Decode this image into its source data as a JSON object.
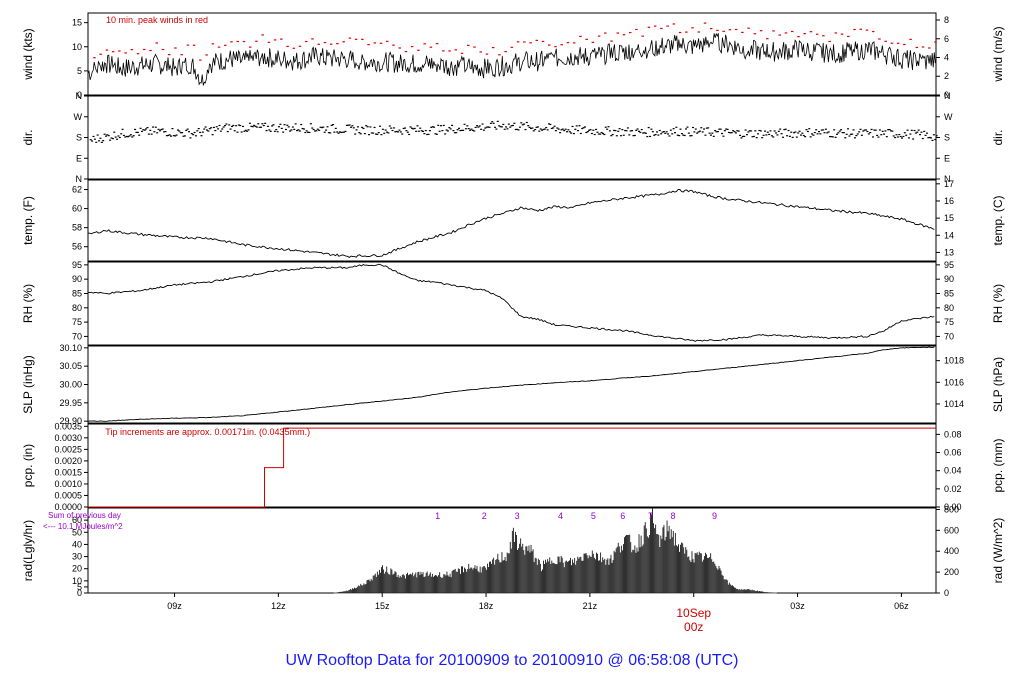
{
  "title": "UW Rooftop Data for 20100909  to  20100910 @ 06:58:08  (UTC)",
  "colors": {
    "axis": "#000000",
    "trace": "#000000",
    "peak": "#e00000",
    "annotation_red": "#d00000",
    "annotation_purple": "#9900cc",
    "title": "#1a1aff"
  },
  "x_axis": {
    "range_hours": [
      6.5,
      31.0
    ],
    "ticks": [
      {
        "hour": 9,
        "label": "09z"
      },
      {
        "hour": 12,
        "label": "12z"
      },
      {
        "hour": 15,
        "label": "15z"
      },
      {
        "hour": 18,
        "label": "18z"
      },
      {
        "hour": 21,
        "label": "21z"
      },
      {
        "hour": 27,
        "label": "03z"
      },
      {
        "hour": 30,
        "label": "06z"
      }
    ],
    "date_marker": {
      "hour": 24,
      "label_top": "10Sep",
      "label_bottom": "00z"
    }
  },
  "chart_data": [
    {
      "id": "wind",
      "type": "line",
      "ylabel_left": "wind (kts)",
      "ylabel_right": "wind (m/s)",
      "ylim": [
        0,
        17
      ],
      "ticks_left": [
        0,
        5,
        10,
        15
      ],
      "ticks_right": [
        {
          "v": 0,
          "label": "0"
        },
        {
          "v": 3.89,
          "label": "2"
        },
        {
          "v": 7.78,
          "label": "4"
        },
        {
          "v": 11.66,
          "label": "6"
        },
        {
          "v": 15.55,
          "label": "8"
        }
      ],
      "annotation": "10 min. peak winds in red",
      "series": [
        {
          "x": [
            6.5,
            7.0,
            7.5,
            8.0,
            8.5,
            9.0,
            9.5,
            9.8,
            10.0,
            10.3,
            10.6,
            11.0,
            11.5,
            12.0,
            12.5,
            13.0,
            13.5,
            14.0,
            14.5,
            15.0,
            15.5,
            16.0,
            16.5,
            17.0,
            17.5,
            18.0,
            18.5,
            19.0,
            19.5,
            20.0,
            20.5,
            21.0,
            21.5,
            22.0,
            22.5,
            23.0,
            23.5,
            24.0,
            24.5,
            25.0,
            25.5,
            26.0,
            26.5,
            27.0,
            27.5,
            28.0,
            28.5,
            29.0,
            29.5,
            30.0,
            30.5,
            31.0
          ],
          "y": [
            4.5,
            6.5,
            5.5,
            6,
            6.5,
            5.5,
            6.5,
            3,
            6.5,
            7,
            7.5,
            7,
            8,
            7.5,
            7,
            8,
            7.5,
            7.5,
            7,
            7,
            6.5,
            6.5,
            6.5,
            6,
            6,
            5.5,
            6,
            7,
            7,
            7.5,
            8,
            8,
            8.5,
            9,
            9.5,
            10,
            10.5,
            10,
            11,
            10.5,
            9.5,
            9,
            9,
            9.5,
            9,
            8.5,
            9,
            9.5,
            8.5,
            7.5,
            7,
            7
          ]
        }
      ]
    },
    {
      "id": "dir",
      "type": "scatter",
      "ylabel_left": "dir.",
      "ylabel_right": "dir.",
      "ylim": [
        0,
        360
      ],
      "ticks_left": [
        {
          "v": 360,
          "label": "N"
        },
        {
          "v": 270,
          "label": "W"
        },
        {
          "v": 180,
          "label": "S"
        },
        {
          "v": 90,
          "label": "E"
        },
        {
          "v": 0,
          "label": "N"
        }
      ],
      "ticks_right": [
        {
          "v": 360,
          "label": "N"
        },
        {
          "v": 270,
          "label": "W"
        },
        {
          "v": 180,
          "label": "S"
        },
        {
          "v": 90,
          "label": "E"
        },
        {
          "v": 0,
          "label": "N"
        }
      ],
      "series": [
        {
          "x": [
            6.5,
            7.5,
            8.5,
            9.5,
            10.5,
            11.5,
            12.5,
            13.5,
            14.5,
            15.5,
            16.5,
            17.5,
            18.5,
            19.5,
            20.5,
            21.5,
            22.5,
            23.5,
            24.5,
            25.5,
            26.5,
            27.5,
            28.5,
            29.5,
            30.5,
            31.0
          ],
          "y": [
            170,
            200,
            210,
            200,
            225,
            225,
            225,
            220,
            215,
            215,
            215,
            225,
            235,
            225,
            215,
            210,
            205,
            210,
            205,
            200,
            200,
            205,
            200,
            200,
            195,
            185
          ],
          "spread": 20
        }
      ]
    },
    {
      "id": "temp",
      "type": "line",
      "ylabel_left": "temp. (F)",
      "ylabel_right": "temp. (C)",
      "ylim": [
        54.5,
        63
      ],
      "ticks_left": [
        56,
        58,
        60,
        62
      ],
      "ticks_right": [
        {
          "v": 55.4,
          "label": "13"
        },
        {
          "v": 57.2,
          "label": "14"
        },
        {
          "v": 59.0,
          "label": "15"
        },
        {
          "v": 60.8,
          "label": "16"
        },
        {
          "v": 62.6,
          "label": "17"
        }
      ],
      "series": [
        {
          "x": [
            6.5,
            7.0,
            8.0,
            9.0,
            10.0,
            11.0,
            12.0,
            13.0,
            14.0,
            15.0,
            15.5,
            16.0,
            16.5,
            17.0,
            17.5,
            18.0,
            18.5,
            19.0,
            19.5,
            20.0,
            20.5,
            21.0,
            22.0,
            23.0,
            23.5,
            24.0,
            24.5,
            25.0,
            26.0,
            27.0,
            28.0,
            29.0,
            30.0,
            31.0
          ],
          "y": [
            57.3,
            57.7,
            57.3,
            57,
            56.9,
            56.2,
            55.8,
            55.4,
            55,
            55.1,
            55.8,
            56.5,
            57,
            57.5,
            58.3,
            59,
            59.5,
            60.1,
            59.8,
            60.2,
            60.1,
            60.6,
            61.1,
            61.5,
            61.9,
            61.8,
            61.3,
            61,
            60.6,
            60.2,
            59.8,
            59.5,
            58.9,
            57.8
          ]
        }
      ]
    },
    {
      "id": "rh",
      "type": "line",
      "ylabel_left": "RH (%)",
      "ylabel_right": "RH (%)",
      "ylim": [
        67,
        96
      ],
      "ticks_left": [
        70,
        75,
        80,
        85,
        90,
        95
      ],
      "ticks_right": [
        {
          "v": 70,
          "label": "70"
        },
        {
          "v": 75,
          "label": "75"
        },
        {
          "v": 80,
          "label": "80"
        },
        {
          "v": 85,
          "label": "85"
        },
        {
          "v": 90,
          "label": "90"
        },
        {
          "v": 95,
          "label": "95"
        }
      ],
      "series": [
        {
          "x": [
            6.5,
            7.0,
            8.0,
            9.0,
            10.0,
            11.0,
            12.0,
            13.0,
            14.0,
            14.5,
            15.0,
            15.5,
            16.0,
            16.5,
            17.0,
            17.5,
            18.0,
            18.5,
            19.0,
            19.5,
            20.0,
            20.5,
            21.0,
            22.0,
            23.0,
            24.0,
            25.0,
            26.0,
            27.0,
            28.0,
            29.0,
            29.5,
            30.0,
            31.0
          ],
          "y": [
            85.5,
            85,
            86,
            88,
            89,
            91,
            93,
            94,
            94,
            95,
            95,
            92,
            89.5,
            89,
            88,
            87,
            86,
            83,
            77,
            76,
            74,
            73.5,
            73,
            72,
            70,
            68.5,
            69,
            70.5,
            70,
            69.5,
            70,
            72,
            75.5,
            77
          ]
        }
      ]
    },
    {
      "id": "slp",
      "type": "line",
      "ylabel_left": "SLP (inHg)",
      "ylabel_right": "SLP (hPa)",
      "ylim": [
        29.895,
        30.105
      ],
      "ticks_left": [
        {
          "v": 29.9,
          "label": "29.90"
        },
        {
          "v": 29.95,
          "label": "29.95"
        },
        {
          "v": 30.0,
          "label": "30.00"
        },
        {
          "v": 30.05,
          "label": "30.05"
        },
        {
          "v": 30.1,
          "label": "30.10"
        }
      ],
      "ticks_right": [
        {
          "v": 29.947,
          "label": "1014"
        },
        {
          "v": 30.006,
          "label": "1016"
        },
        {
          "v": 30.065,
          "label": "1018"
        }
      ],
      "series": [
        {
          "x": [
            6.5,
            7.0,
            8.0,
            9.0,
            10.0,
            11.0,
            12.0,
            13.0,
            14.0,
            15.0,
            16.0,
            17.0,
            18.0,
            19.0,
            20.0,
            21.0,
            22.0,
            23.0,
            24.0,
            25.0,
            26.0,
            27.0,
            28.0,
            29.0,
            29.5,
            30.0,
            31.0
          ],
          "y": [
            29.9,
            29.9,
            29.905,
            29.908,
            29.91,
            29.915,
            29.925,
            29.935,
            29.945,
            29.955,
            29.965,
            29.98,
            29.99,
            29.998,
            30.005,
            30.01,
            30.018,
            30.025,
            30.035,
            30.045,
            30.055,
            30.065,
            30.075,
            30.085,
            30.095,
            30.1,
            30.102
          ]
        }
      ]
    },
    {
      "id": "pcp",
      "type": "line",
      "ylabel_left": "pcp. (in)",
      "ylabel_right": "pcp. (mm)",
      "ylim": [
        0,
        0.0036
      ],
      "ticks_left": [
        {
          "v": 0,
          "label": "0.0000"
        },
        {
          "v": 0.0005,
          "label": "0.0005"
        },
        {
          "v": 0.001,
          "label": "0.0010"
        },
        {
          "v": 0.0015,
          "label": "0.0015"
        },
        {
          "v": 0.002,
          "label": "0.0020"
        },
        {
          "v": 0.0025,
          "label": "0.0025"
        },
        {
          "v": 0.003,
          "label": "0.0030"
        },
        {
          "v": 0.0035,
          "label": "0.0035"
        }
      ],
      "ticks_right": [
        {
          "v": 0,
          "label": "0.00"
        },
        {
          "v": 0.000787,
          "label": "0.02"
        },
        {
          "v": 0.001575,
          "label": "0.04"
        },
        {
          "v": 0.002362,
          "label": "0.06"
        },
        {
          "v": 0.00315,
          "label": "0.08"
        }
      ],
      "annotation": "Tip increments are approx. 0.00171in. (0.0435mm.)",
      "series": [
        {
          "x": [
            6.5,
            11.6,
            11.6,
            12.15,
            12.15,
            31.0
          ],
          "y": [
            0,
            0,
            0.00171,
            0.00171,
            0.00342,
            0.00342
          ]
        }
      ]
    },
    {
      "id": "rad",
      "type": "area",
      "ylabel_left": "rad(Lgly/hr)",
      "ylabel_right": "rad (W/m^2)",
      "ylim": [
        0,
        70
      ],
      "ticks_left": [
        0,
        5,
        10,
        20,
        30,
        40,
        50,
        60
      ],
      "ticks_right": [
        {
          "v": 0,
          "label": "0"
        },
        {
          "v": 17.2,
          "label": "200"
        },
        {
          "v": 34.4,
          "label": "400"
        },
        {
          "v": 51.6,
          "label": "600"
        },
        {
          "v": 68.8,
          "label": "800"
        }
      ],
      "annotation_lines": [
        "Sum of previous day",
        "<--- 10.1 MJoules/m^2"
      ],
      "hour_markers": [
        {
          "hour": 16.6,
          "label": "1"
        },
        {
          "hour": 17.95,
          "label": "2"
        },
        {
          "hour": 18.9,
          "label": "3"
        },
        {
          "hour": 20.15,
          "label": "4"
        },
        {
          "hour": 21.1,
          "label": "5"
        },
        {
          "hour": 21.95,
          "label": "6"
        },
        {
          "hour": 22.75,
          "label": "7"
        },
        {
          "hour": 23.4,
          "label": "8"
        },
        {
          "hour": 24.6,
          "label": "9"
        }
      ],
      "series": [
        {
          "x": [
            13.6,
            14.0,
            14.5,
            14.8,
            15.0,
            15.3,
            15.6,
            16.0,
            16.5,
            17.0,
            17.5,
            18.0,
            18.3,
            18.6,
            18.8,
            19.0,
            19.3,
            19.6,
            20.0,
            20.3,
            20.6,
            21.0,
            21.3,
            21.6,
            22.0,
            22.3,
            22.6,
            22.8,
            23.0,
            23.3,
            23.6,
            24.0,
            24.3,
            24.6,
            25.0,
            25.3,
            25.6,
            26.0,
            26.4
          ],
          "y": [
            0,
            2,
            8,
            15,
            20,
            18,
            14,
            16,
            15,
            16,
            22,
            20,
            28,
            32,
            48,
            40,
            35,
            22,
            30,
            25,
            27,
            35,
            30,
            28,
            46,
            38,
            52,
            62,
            44,
            55,
            38,
            30,
            30,
            28,
            8,
            3,
            3,
            1,
            0
          ]
        }
      ]
    }
  ]
}
